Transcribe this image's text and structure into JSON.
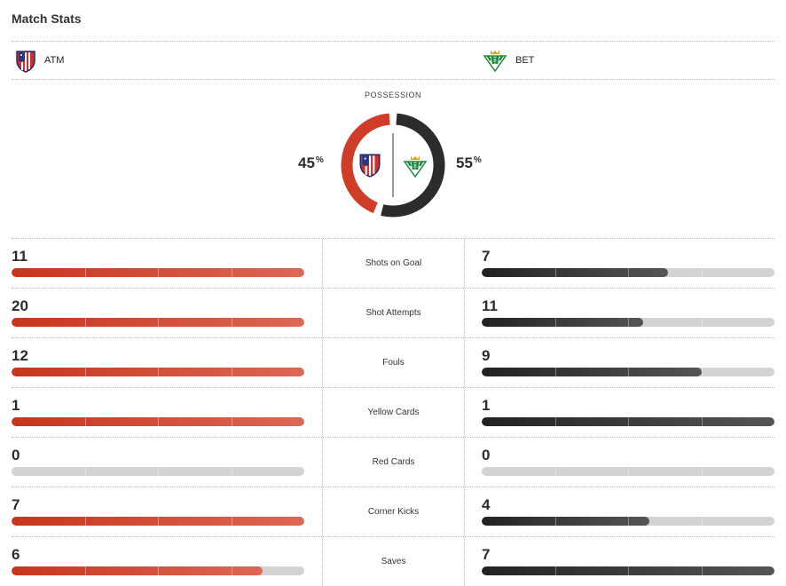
{
  "title": "Match Stats",
  "home": {
    "abbr": "ATM",
    "color": "#cf3c28"
  },
  "away": {
    "abbr": "BET",
    "color": "#2b2c2d"
  },
  "possession": {
    "label": "POSSESSION",
    "home": "45",
    "away": "55",
    "unit": "%"
  },
  "stats": [
    {
      "label": "Shots on Goal",
      "home": "11",
      "away": "7"
    },
    {
      "label": "Shot Attempts",
      "home": "20",
      "away": "11"
    },
    {
      "label": "Fouls",
      "home": "12",
      "away": "9"
    },
    {
      "label": "Yellow Cards",
      "home": "1",
      "away": "1"
    },
    {
      "label": "Red Cards",
      "home": "0",
      "away": "0"
    },
    {
      "label": "Corner Kicks",
      "home": "7",
      "away": "4"
    },
    {
      "label": "Saves",
      "home": "6",
      "away": "7"
    }
  ]
}
